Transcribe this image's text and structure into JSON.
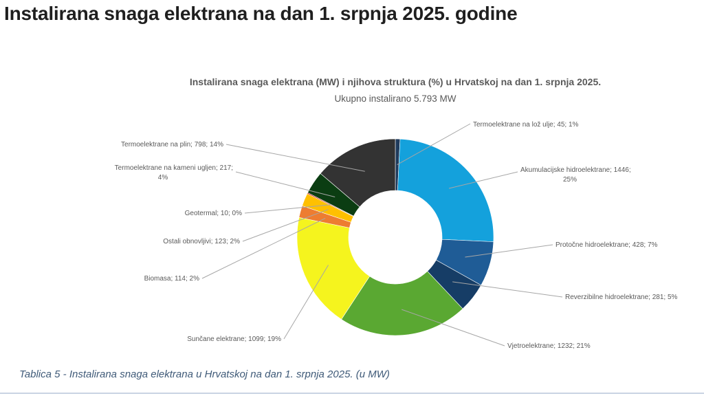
{
  "slide": {
    "title": "Instalirana snaga elektrana na dan 1. srpnja 2025. godine",
    "caption": "Tablica 5 - Instalirana snaga elektrana u Hrvatskoj na dan 1. srpnja 2025. (u MW)"
  },
  "chart_data": {
    "type": "pie",
    "title": "Instalirana snaga elektrana (MW) i njihova struktura (%) u Hrvatskoj na dan 1. srpnja 2025.",
    "subtitle": "Ukupno instalirano 5.793 MW",
    "unit": "MW",
    "total": 5793,
    "legend": "none",
    "slices": [
      {
        "label": "Termoelektrane na lož ulje; 45; 1%",
        "category": "Termoelektrane na lož ulje",
        "value": 45,
        "percent": 1,
        "color": "#1f3b5c"
      },
      {
        "label": "Akumulacijske hidroelektrane; 1446; 25%",
        "category": "Akumulacijske hidroelektrane",
        "value": 1446,
        "percent": 25,
        "color": "#14a1dc"
      },
      {
        "label": "Protočne hidroelektrane; 428; 7%",
        "category": "Protočne hidroelektrane",
        "value": 428,
        "percent": 7,
        "color": "#1f5c96"
      },
      {
        "label": "Reverzibilne hidroelektrane; 281; 5%",
        "category": "Reverzibilne hidroelektrane",
        "value": 281,
        "percent": 5,
        "color": "#163d66"
      },
      {
        "label": "Vjetroelektrane; 1232; 21%",
        "category": "Vjetroelektrane",
        "value": 1232,
        "percent": 21,
        "color": "#5aa832"
      },
      {
        "label": "Sunčane elektrane; 1099; 19%",
        "category": "Sunčane elektrane",
        "value": 1099,
        "percent": 19,
        "color": "#f5f41e"
      },
      {
        "label": "Biomasa; 114; 2%",
        "category": "Biomasa",
        "value": 114,
        "percent": 2,
        "color": "#ed7d31"
      },
      {
        "label": "Ostali obnovljivi; 123; 2%",
        "category": "Ostali obnovljivi",
        "value": 123,
        "percent": 2,
        "color": "#ffc000"
      },
      {
        "label": "Geotermal; 10; 0%",
        "category": "Geotermal",
        "value": 10,
        "percent": 0,
        "color": "#c00000"
      },
      {
        "label": "Termoelektrane na kameni ugljen; 217; 4%",
        "category": "Termoelektrane na kameni ugljen",
        "value": 217,
        "percent": 4,
        "color": "#0b3d12"
      },
      {
        "label": "Termoelektrane na plin; 798; 14%",
        "category": "Termoelektrane na plin",
        "value": 798,
        "percent": 14,
        "color": "#333333"
      }
    ]
  }
}
